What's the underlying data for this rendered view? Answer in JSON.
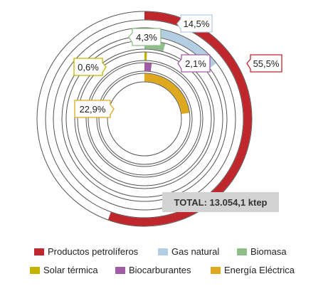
{
  "chart_data": {
    "type": "radial-bar",
    "total_label": "TOTAL: 13.054,1 ktep",
    "series": [
      {
        "name": "Productos petrolíferos",
        "value": 55.5,
        "label": "55,5%",
        "color": "#c0272d"
      },
      {
        "name": "Gas natural",
        "value": 14.5,
        "label": "14,5%",
        "color": "#b3cde3"
      },
      {
        "name": "Biomasa",
        "value": 4.3,
        "label": "4,3%",
        "color": "#8fbe8a"
      },
      {
        "name": "Solar térmica",
        "value": 0.6,
        "label": "0,6%",
        "color": "#c2b400"
      },
      {
        "name": "Biocarburantes",
        "value": 2.1,
        "label": "2,1%",
        "color": "#a05ca5"
      },
      {
        "name": "Energía Eléctrica",
        "value": 22.9,
        "label": "22,9%",
        "color": "#dfa91f"
      }
    ]
  }
}
